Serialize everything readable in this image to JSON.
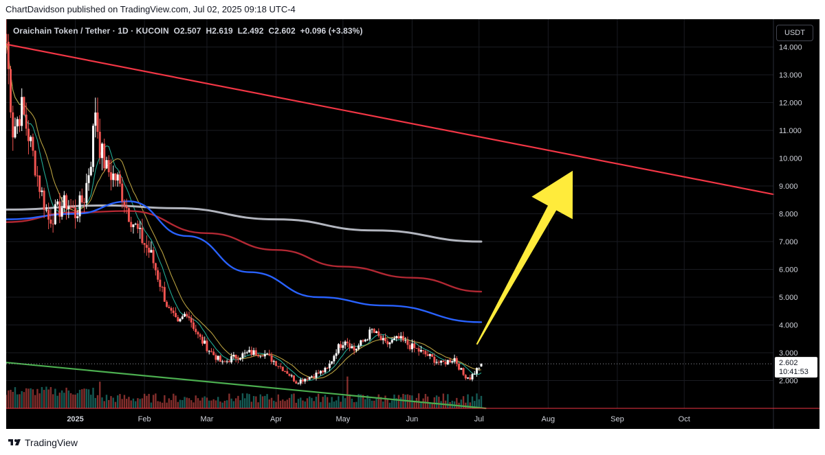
{
  "header": {
    "published_text": "ChartDavidson published on TradingView.com, Jul 02, 2025 09:18 UTC-4"
  },
  "legend": {
    "symbol": "Oraichain Token / Tether · 1D · KUCOIN",
    "open": "O2.507",
    "high": "H2.619",
    "low": "L2.492",
    "close": "C2.602",
    "change": "+0.096 (+3.83%)"
  },
  "currency": "USDT",
  "price_label": {
    "price": "2.602",
    "countdown": "10:41:53"
  },
  "footer": {
    "brand": "TradingView"
  },
  "colors": {
    "background": "#000000",
    "up": "#ffffff",
    "down": "#ef5350",
    "trendline": "#f23645",
    "ma_gray": "#b2b5be",
    "ma_darkred": "#b22833",
    "ma_blue": "#2962ff",
    "ma_green": "#22ab94",
    "ma_gold": "#b8a040",
    "support_line": "#4caf50",
    "arrow": "#ffeb3b",
    "volume_up": "#26a69a",
    "volume_down": "#ef5350"
  },
  "chart_data": {
    "type": "candlestick",
    "xlim": [
      "2024-12-01",
      "2025-11-10"
    ],
    "ylim": [
      1.0,
      15.0
    ],
    "x_ticks": [
      "2025",
      "Feb",
      "Mar",
      "Apr",
      "May",
      "Jun",
      "Jul",
      "Aug",
      "Sep",
      "Oct"
    ],
    "x_tick_dates": [
      "2025-01-01",
      "2025-02-01",
      "2025-03-01",
      "2025-04-01",
      "2025-05-01",
      "2025-06-01",
      "2025-07-01",
      "2025-08-01",
      "2025-09-01",
      "2025-10-01"
    ],
    "y_ticks": [
      "2.000",
      "3.000",
      "4.000",
      "5.000",
      "6.000",
      "7.000",
      "8.000",
      "9.000",
      "10.000",
      "11.000",
      "12.000",
      "13.000",
      "14.000"
    ],
    "candles_start_date": "2024-12-01",
    "ohlc_anchor_closes": [
      [
        "2024-12-01",
        14.2
      ],
      [
        "2024-12-04",
        11.0
      ],
      [
        "2024-12-08",
        11.8
      ],
      [
        "2024-12-12",
        10.5
      ],
      [
        "2024-12-16",
        9.0
      ],
      [
        "2024-12-20",
        7.8
      ],
      [
        "2024-12-24",
        8.1
      ],
      [
        "2024-12-28",
        8.4
      ],
      [
        "2025-01-01",
        8.0
      ],
      [
        "2025-01-05",
        8.6
      ],
      [
        "2025-01-08",
        10.0
      ],
      [
        "2025-01-10",
        11.8
      ],
      [
        "2025-01-12",
        10.4
      ],
      [
        "2025-01-15",
        9.6
      ],
      [
        "2025-01-20",
        9.2
      ],
      [
        "2025-01-25",
        8.0
      ],
      [
        "2025-01-30",
        7.2
      ],
      [
        "2025-02-04",
        6.5
      ],
      [
        "2025-02-08",
        5.5
      ],
      [
        "2025-02-12",
        4.5
      ],
      [
        "2025-02-16",
        4.0
      ],
      [
        "2025-02-20",
        4.5
      ],
      [
        "2025-02-25",
        3.6
      ],
      [
        "2025-03-02",
        3.1
      ],
      [
        "2025-03-08",
        2.6
      ],
      [
        "2025-03-12",
        2.8
      ],
      [
        "2025-03-20",
        3.0
      ],
      [
        "2025-03-26",
        3.0
      ],
      [
        "2025-03-31",
        2.7
      ],
      [
        "2025-04-06",
        2.3
      ],
      [
        "2025-04-10",
        1.95
      ],
      [
        "2025-04-18",
        2.2
      ],
      [
        "2025-04-24",
        2.4
      ],
      [
        "2025-04-28",
        3.1
      ],
      [
        "2025-05-02",
        3.5
      ],
      [
        "2025-05-06",
        3.1
      ],
      [
        "2025-05-10",
        3.4
      ],
      [
        "2025-05-14",
        3.8
      ],
      [
        "2025-05-20",
        3.3
      ],
      [
        "2025-05-26",
        3.5
      ],
      [
        "2025-06-01",
        3.2
      ],
      [
        "2025-06-08",
        2.9
      ],
      [
        "2025-06-14",
        2.6
      ],
      [
        "2025-06-20",
        2.8
      ],
      [
        "2025-06-24",
        2.2
      ],
      [
        "2025-06-27",
        2.1
      ],
      [
        "2025-07-02",
        2.602
      ]
    ],
    "volatility": 0.045,
    "series": [
      {
        "role": "resistance-trendline",
        "x": [
          "2024-12-01",
          "2025-11-10"
        ],
        "y": [
          14.1,
          8.7
        ]
      },
      {
        "role": "ma-gray",
        "x": [
          "2024-12-01",
          "2025-01-15",
          "2025-02-15",
          "2025-04-01",
          "2025-05-15",
          "2025-07-02"
        ],
        "y": [
          8.15,
          8.3,
          8.2,
          7.8,
          7.4,
          7.0
        ]
      },
      {
        "role": "ma-darkred",
        "x": [
          "2024-12-01",
          "2025-01-01",
          "2025-01-25",
          "2025-03-01",
          "2025-04-01",
          "2025-05-01",
          "2025-06-01",
          "2025-07-02"
        ],
        "y": [
          7.7,
          8.05,
          8.1,
          7.3,
          6.7,
          6.1,
          5.7,
          5.2
        ]
      },
      {
        "role": "ma-blue",
        "x": [
          "2024-12-01",
          "2025-01-01",
          "2025-01-25",
          "2025-02-20",
          "2025-03-20",
          "2025-04-20",
          "2025-05-20",
          "2025-07-02"
        ],
        "y": [
          7.8,
          8.0,
          8.45,
          7.2,
          5.9,
          5.0,
          4.7,
          4.1
        ]
      },
      {
        "role": "support-line",
        "x": [
          "2024-12-01",
          "2025-07-04"
        ],
        "y": [
          2.65,
          1.0
        ]
      }
    ],
    "arrow": {
      "from": [
        "2025-06-30",
        3.3
      ],
      "to": [
        "2025-08-12",
        9.55
      ]
    },
    "last_price": 2.602
  }
}
